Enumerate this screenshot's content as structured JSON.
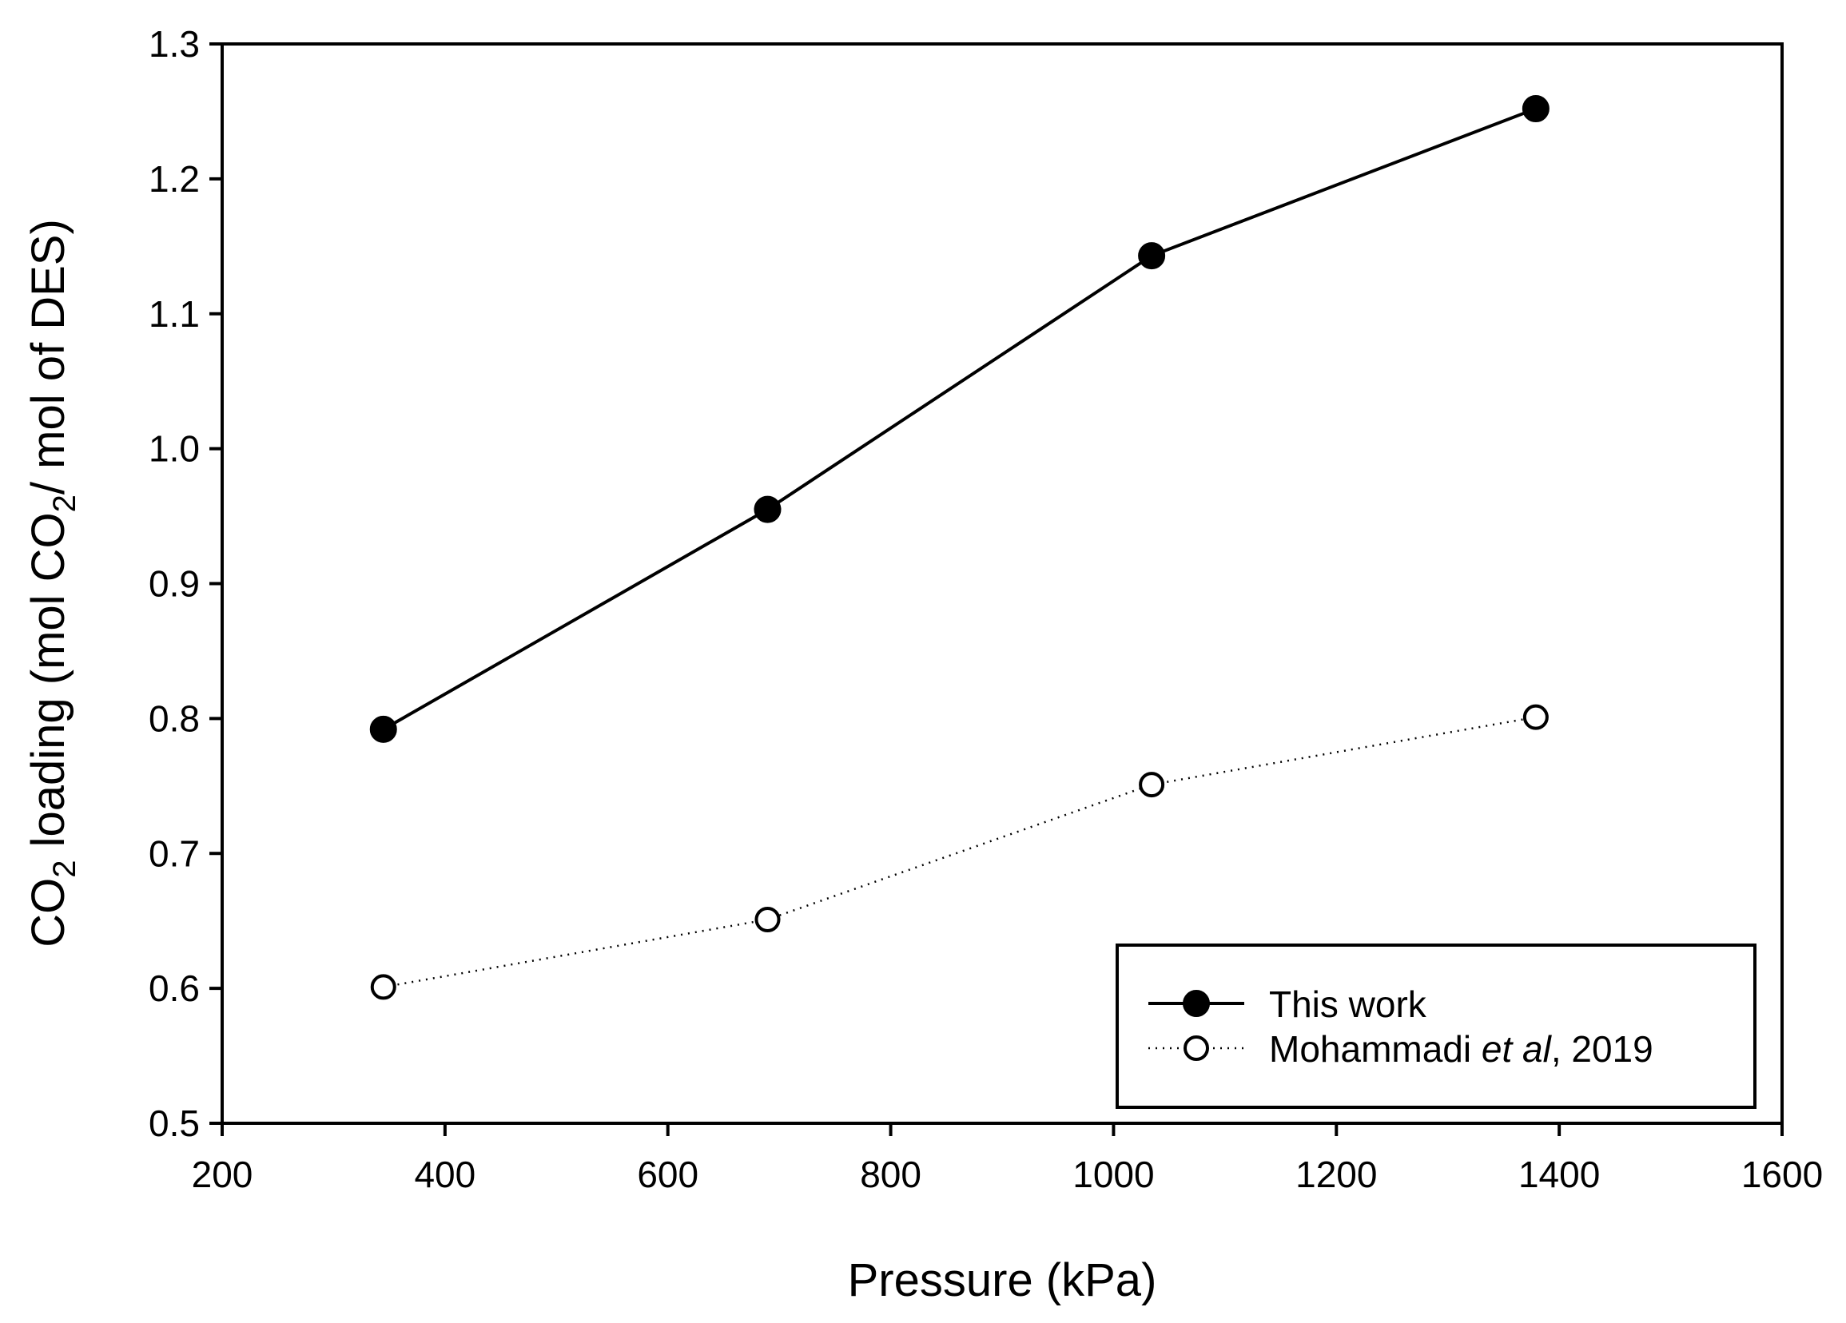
{
  "chart_data": {
    "type": "line",
    "title": "",
    "xlabel": "Pressure (kPa)",
    "ylabel": {
      "prefix": "CO",
      "sub1": "2",
      "middle": " loading (mol CO",
      "sub2": "2",
      "suffix": "/ mol of DES)"
    },
    "xlim": [
      200,
      1600
    ],
    "ylim": [
      0.5,
      1.3
    ],
    "xticks": [
      200,
      400,
      600,
      800,
      1000,
      1200,
      1400,
      1600
    ],
    "xtick_labels": [
      "200",
      "400",
      "600",
      "800",
      "1000",
      "1200",
      "1400",
      "1600"
    ],
    "yticks": [
      0.5,
      0.6,
      0.7,
      0.8,
      0.9,
      1.0,
      1.1,
      1.2,
      1.3
    ],
    "ytick_labels": [
      "0.5",
      "0.6",
      "0.7",
      "0.8",
      "0.9",
      "1.0",
      "1.1",
      "1.2",
      "1.3"
    ],
    "grid": false,
    "legend_position": "bottom-right",
    "series": [
      {
        "name": "This work",
        "marker": "filled-circle",
        "line_style": "solid",
        "x": [
          344.7,
          689.5,
          1034.2,
          1379
        ],
        "y": [
          0.792,
          0.955,
          1.143,
          1.252
        ]
      },
      {
        "name": "Mohammadi et al, 2019",
        "legend_parts": {
          "before": "Mohammadi ",
          "italic": "et al",
          "after": ", 2019"
        },
        "marker": "open-circle",
        "line_style": "dotted",
        "x": [
          344.7,
          689.5,
          1034.2,
          1379
        ],
        "y": [
          0.601,
          0.651,
          0.751,
          0.801
        ]
      }
    ]
  }
}
